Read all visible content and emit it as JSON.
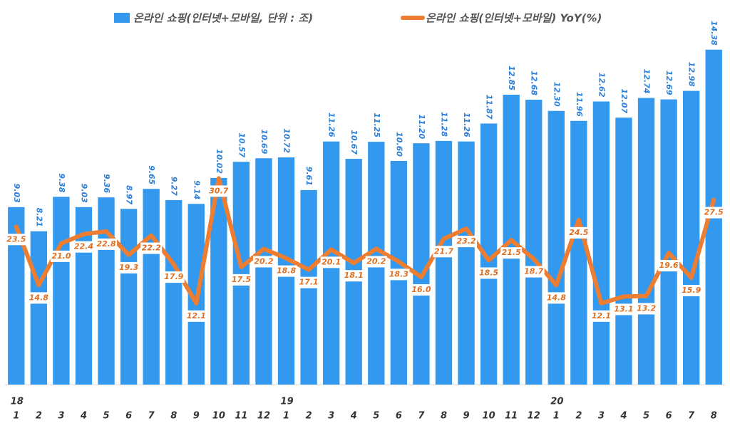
{
  "chart_data": {
    "type": "bar-line",
    "categories": [
      "1",
      "2",
      "3",
      "4",
      "5",
      "6",
      "7",
      "8",
      "9",
      "10",
      "11",
      "12",
      "1",
      "2",
      "3",
      "4",
      "5",
      "6",
      "7",
      "8",
      "9",
      "10",
      "11",
      "12",
      "1",
      "2",
      "3",
      "4",
      "5",
      "6",
      "7",
      "8"
    ],
    "year_labels": [
      "18",
      null,
      null,
      null,
      null,
      null,
      null,
      null,
      null,
      null,
      null,
      null,
      "19",
      null,
      null,
      null,
      null,
      null,
      null,
      null,
      null,
      null,
      null,
      null,
      "20",
      null,
      null,
      null,
      null,
      null,
      null,
      null
    ],
    "series": [
      {
        "name": "온라인 쇼핑(인터넷+모바일, 단위 : 조)",
        "type": "bar",
        "color": "#3399ee",
        "values": [
          9.03,
          8.21,
          9.38,
          9.03,
          9.36,
          8.97,
          9.65,
          9.27,
          9.14,
          10.02,
          10.57,
          10.69,
          10.72,
          9.61,
          11.26,
          10.67,
          11.25,
          10.6,
          11.2,
          11.28,
          11.26,
          11.87,
          12.85,
          12.68,
          12.3,
          11.96,
          12.62,
          12.07,
          12.74,
          12.69,
          12.98,
          14.38
        ],
        "value_labels": [
          "9.03",
          "8.21",
          "9.38",
          "9.03",
          "9.36",
          "8.97",
          "9.65",
          "9.27",
          "9.14",
          "10.02",
          "10.57",
          "10.69",
          "10.72",
          "9.61",
          "11.26",
          "10.67",
          "11.25",
          "10.60",
          "11.20",
          "11.28",
          "11.26",
          "11.87",
          "12.85",
          "12.68",
          "12.30",
          "11.96",
          "12.62",
          "12.07",
          "12.74",
          "12.69",
          "12.98",
          "14.38"
        ]
      },
      {
        "name": "온라인 쇼핑(인터넷+모바일) YoY(%)",
        "type": "line",
        "axis": "y2",
        "color": "#ed7d31",
        "values": [
          23.5,
          14.8,
          21,
          22.4,
          22.8,
          19.3,
          22.2,
          17.9,
          12.1,
          30.7,
          17.5,
          20.2,
          18.8,
          17.1,
          20.1,
          18.1,
          20.2,
          18.3,
          16,
          21.7,
          23.2,
          18.5,
          21.5,
          18.7,
          14.8,
          24.5,
          12.1,
          13.1,
          13.2,
          19.6,
          15.9,
          27.5
        ],
        "value_labels": [
          "23.5",
          "14.8",
          "21.0",
          "22.4",
          "22.8",
          "19.3",
          "22.2",
          "17.9",
          "12.1",
          "30.7",
          "17.5",
          "20.2",
          "18.8",
          "17.1",
          "20.1",
          "18.1",
          "20.2",
          "18.3",
          "16.0",
          "21.7",
          "23.2",
          "18.5",
          "21.5",
          "18.7",
          "14.8",
          "24.5",
          "12.1",
          "13.1",
          "13.2",
          "19.6",
          "15.9",
          "27.5"
        ]
      }
    ],
    "ylim": [
      3,
      15.1
    ],
    "y2lim": [
      0,
      53
    ],
    "legend": "top"
  }
}
